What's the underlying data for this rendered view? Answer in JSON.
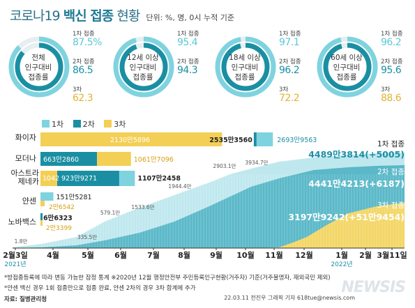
{
  "title": {
    "part1": "코로나19",
    "part2": "백신 접종",
    "part3": "현황",
    "unit": "단위: %, 명, 0시 누적 기준"
  },
  "donuts": [
    {
      "label": [
        "전체",
        "인구대비",
        "접종률"
      ],
      "doses": [
        {
          "label": "1차 접종",
          "value": "87.5%",
          "pct": 87.5
        },
        {
          "label": "2차 접종",
          "value": "86.5",
          "pct": 86.5
        },
        {
          "label": "3차",
          "value": "62.3",
          "pct": 62.3
        }
      ]
    },
    {
      "label": [
        "12세 이상",
        "인구대비",
        "접종률"
      ],
      "doses": [
        {
          "label": "1차 접종",
          "value": "95.4",
          "pct": 95.4
        },
        {
          "label": "2차 접종",
          "value": "94.3",
          "pct": 94.3
        },
        {
          "label": "3차",
          "value": "",
          "pct": null
        }
      ]
    },
    {
      "label": [
        "18세 이상",
        "인구대비",
        "접종률"
      ],
      "doses": [
        {
          "label": "1차 접종",
          "value": "97.1",
          "pct": 97.1
        },
        {
          "label": "2차 접종",
          "value": "96.2",
          "pct": 96.2
        },
        {
          "label": "3차",
          "value": "72.2",
          "pct": 72.2
        }
      ]
    },
    {
      "label": [
        "60세 이상",
        "인구대비",
        "접종률"
      ],
      "doses": [
        {
          "label": "1차 접종",
          "value": "96.2",
          "pct": 96.2
        },
        {
          "label": "2차 접종",
          "value": "95.6",
          "pct": 95.6
        },
        {
          "label": "3차",
          "value": "88.6",
          "pct": 88.6
        }
      ]
    }
  ],
  "legend": [
    "1차",
    "2차",
    "3차"
  ],
  "colors": {
    "dose1": "#7fd3df",
    "dose2": "#1a8fa3",
    "dose3": "#f3cf55",
    "dose3_dark": "#e1b230",
    "title": "#1f7a92"
  },
  "chart_data": [
    {
      "type": "bar",
      "stacked": true,
      "categories": [
        "화이자",
        "모더나",
        "아스트라 제네카",
        "얀센",
        "노바백스"
      ],
      "series": [
        {
          "name": "1차",
          "values": [
            26939563,
            0,
            11072458,
            1515281,
            66323
          ],
          "labels": [
            "2693만9563",
            "",
            "1107만2458",
            "151만5281",
            "6만6323"
          ]
        },
        {
          "name": "2차",
          "values": [
            25353560,
            6632860,
            9239271,
            0,
            0
          ],
          "labels": [
            "2535만3560",
            "663만2860",
            "923만9271",
            "",
            ""
          ]
        },
        {
          "name": "3차",
          "values": [
            21305896,
            10617096,
            1042,
            26542,
            23399
          ],
          "labels": [
            "2130만5896",
            "1061만7096",
            "1042",
            "2만6542",
            "2만3399"
          ]
        }
      ]
    },
    {
      "type": "area",
      "x": [
        "2월3일",
        "4월",
        "5월",
        "6월",
        "7월",
        "8월",
        "9월",
        "10월",
        "11월",
        "12월",
        "1월",
        "2월",
        "3월11일"
      ],
      "year_labels": [
        "2021년",
        "2022년"
      ],
      "annotations": [
        "1.8만",
        "335.5만",
        "579.1만",
        "1533.6만",
        "1944.4만",
        "2903.1만",
        "3934.7만"
      ],
      "totals": [
        {
          "name": "1차 접종",
          "value": "4489만3814",
          "delta": "(+5005)"
        },
        {
          "name": "2차 접종",
          "value": "4441만4213",
          "delta": "(+6187)"
        },
        {
          "name": "3차 접종",
          "value": "3197만9242",
          "delta": "(+51만9454)"
        }
      ]
    }
  ],
  "footnotes": [
    "*방접종등록에 따라 변동 가능한 잠정 통계 ※2020년 12월 행정안전부 주민등록인구현황(거주자) 기준(거주불명자, 재외국민 제외)",
    "*얀센 백신 경우 1회 접종만으로 접종 완료, 얀센 2차의 경우 3차 합계에 추가",
    "자료: 질병관리청"
  ],
  "credit": "22.03.11 전진우 그래픽 기자 618tue@newsis.com",
  "watermark": "NEWSIS"
}
